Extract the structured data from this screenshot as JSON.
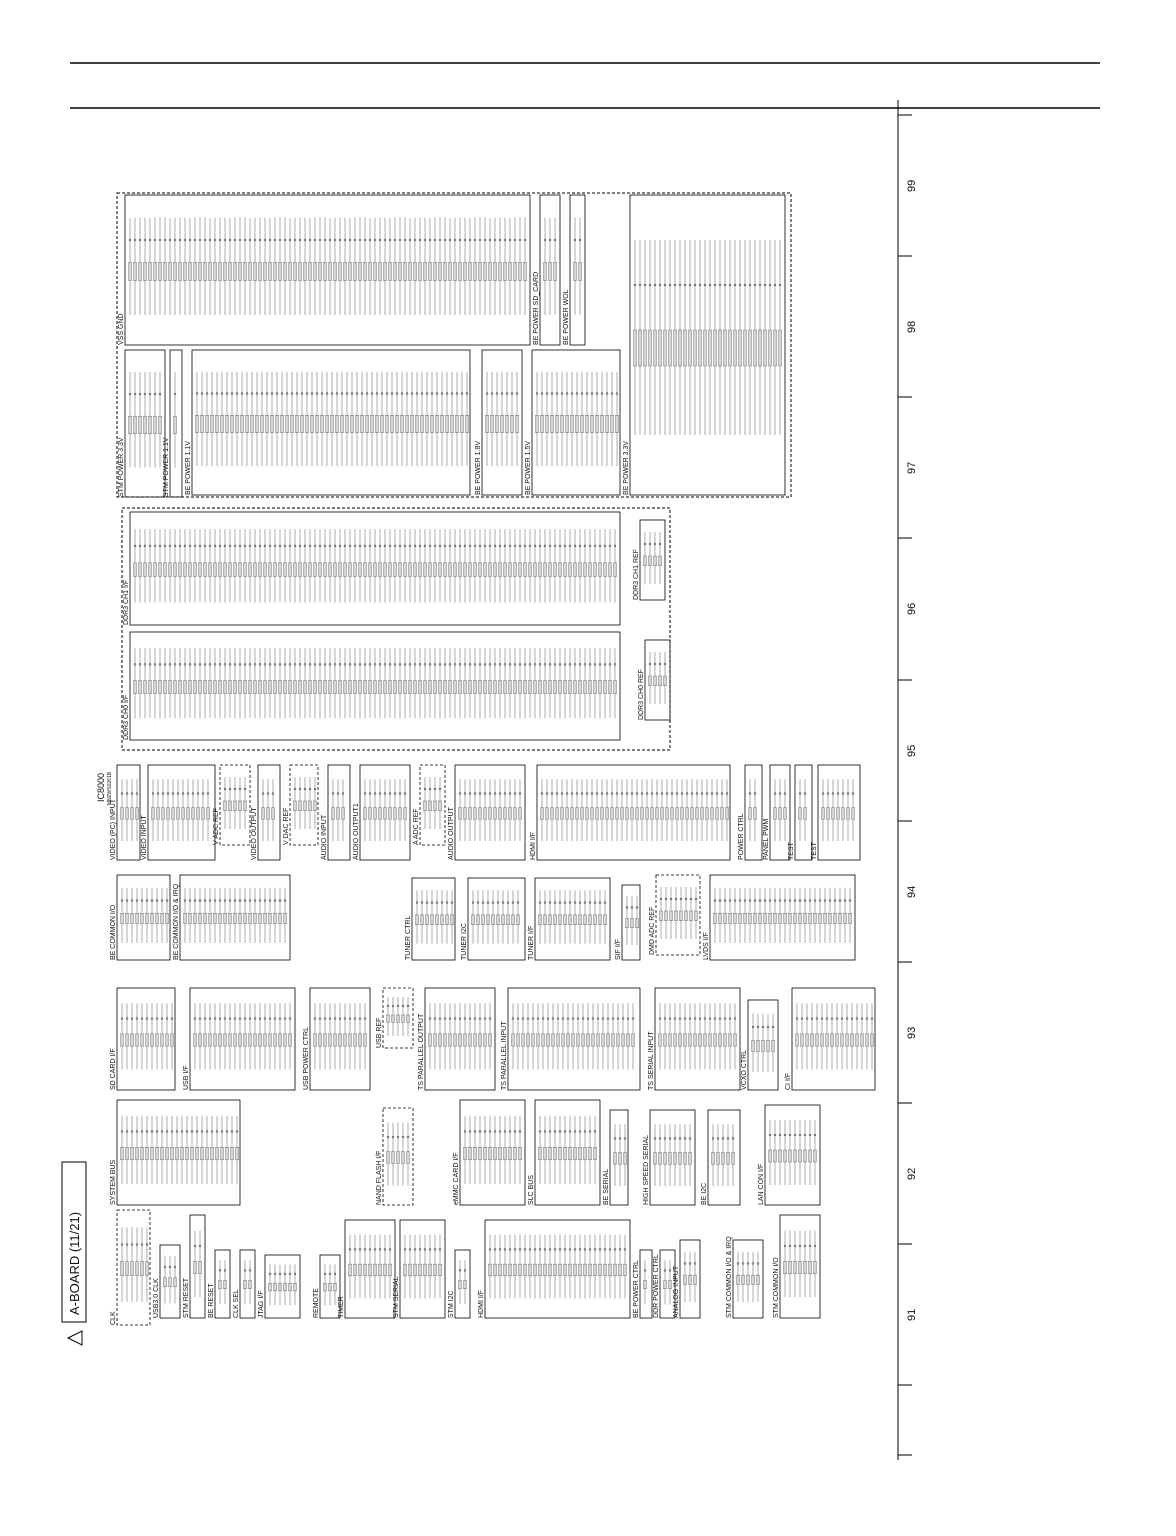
{
  "header": {
    "title": "A-BOARD (11/21)",
    "ic": "IC8000",
    "part": "MN2WS0261B"
  },
  "zones": [
    "91",
    "92",
    "93",
    "94",
    "95",
    "96",
    "97",
    "98",
    "99"
  ],
  "blocks": [
    {
      "label": "CLK"
    },
    {
      "label": "USB3.0 CLK"
    },
    {
      "label": "STM RESET"
    },
    {
      "label": "BE RESET"
    },
    {
      "label": "CLK SEL"
    },
    {
      "label": "JTAG I/F"
    },
    {
      "label": "REMOTE"
    },
    {
      "label": "TIMER"
    },
    {
      "label": "STM SERIAL"
    },
    {
      "label": "STM I2C"
    },
    {
      "label": "HDMI I/F"
    },
    {
      "label": "BE POWER CTRL"
    },
    {
      "label": "DDR POWER CTRL"
    },
    {
      "label": "ANALOG INPUT"
    },
    {
      "label": "STM COMMON I/O & IRQ"
    },
    {
      "label": "STM COMMON I/O"
    },
    {
      "label": "SYSTEM BUS"
    },
    {
      "label": "NAND FLASH I/F"
    },
    {
      "label": "eMMC CARD I/F"
    },
    {
      "label": "SLC BUS"
    },
    {
      "label": "BE SERIAL"
    },
    {
      "label": "HIGH SPEED SERIAL"
    },
    {
      "label": "BE I2C"
    },
    {
      "label": "LAN CON I/F"
    },
    {
      "label": "SD CARD I/F"
    },
    {
      "label": "USB I/F"
    },
    {
      "label": "USB POWER CTRL"
    },
    {
      "label": "USB REF"
    },
    {
      "label": "TS PARALLEL OUTPUT"
    },
    {
      "label": "TS PARALLEL INPUT"
    },
    {
      "label": "TS SERIAL INPUT"
    },
    {
      "label": "VCXO CTRL"
    },
    {
      "label": "CI I/F"
    },
    {
      "label": "BE COMMON I/O"
    },
    {
      "label": "BE COMMON I/O & IRQ"
    },
    {
      "label": "TUNER CTRL"
    },
    {
      "label": "TUNER I2C"
    },
    {
      "label": "TUNER I/F"
    },
    {
      "label": "SIF I/F"
    },
    {
      "label": "DMD ADC REF"
    },
    {
      "label": "LVDS I/F"
    },
    {
      "label": "VIDEO (PC) INPUT"
    },
    {
      "label": "VIDEO INPUT"
    },
    {
      "label": "V ADC REF"
    },
    {
      "label": "VIDEO OUTPUT"
    },
    {
      "label": "V DAC REF"
    },
    {
      "label": "AUDIO INPUT"
    },
    {
      "label": "AUDIO OUTPUT1"
    },
    {
      "label": "A ADC REF"
    },
    {
      "label": "AUDIO OUTPUT"
    },
    {
      "label": "HDMI I/F"
    },
    {
      "label": "POWER CTRL"
    },
    {
      "label": "PANEL PWM"
    },
    {
      "label": "TEST"
    },
    {
      "label": "TEST"
    },
    {
      "label": "DDR3 CH0 I/F"
    },
    {
      "label": "DDR3 CH0 REF"
    },
    {
      "label": "DDR3 CH1 I/F"
    },
    {
      "label": "DDR3 CH1 REF"
    },
    {
      "label": "STM POWER 3.3V"
    },
    {
      "label": "STM POWER 1.1V"
    },
    {
      "label": "BE POWER 1.1V"
    },
    {
      "label": "BE POWER 1.8V"
    },
    {
      "label": "BE POWER 1.5V"
    },
    {
      "label": "BE POWER 3.3V"
    },
    {
      "label": "VSS GND"
    },
    {
      "label": "BE POWER SD_CARD"
    },
    {
      "label": "BE POWER WOL"
    }
  ]
}
